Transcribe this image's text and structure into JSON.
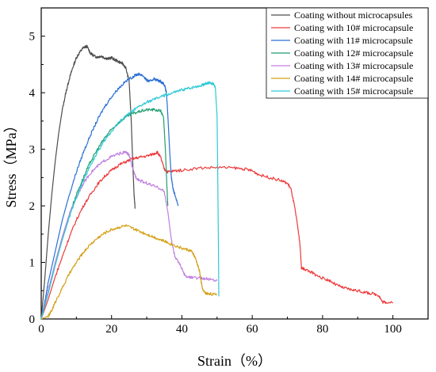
{
  "chart_data": {
    "type": "line",
    "title": "",
    "xlabel": "Strain（%）",
    "ylabel": "Stress（MPa）",
    "xlim": [
      0,
      110
    ],
    "ylim": [
      0,
      5.5
    ],
    "xticks": [
      0,
      20,
      40,
      60,
      80,
      100
    ],
    "yticks": [
      0,
      1,
      2,
      3,
      4,
      5
    ],
    "grid": false,
    "legend": "top-right",
    "series": [
      {
        "name": "Coating without microcapsules",
        "color": "#4d4d4d",
        "points": [
          [
            0,
            0
          ],
          [
            1,
            0.7
          ],
          [
            2,
            1.5
          ],
          [
            3,
            2.2
          ],
          [
            4,
            2.8
          ],
          [
            5,
            3.3
          ],
          [
            6,
            3.7
          ],
          [
            7,
            4.0
          ],
          [
            8,
            4.25
          ],
          [
            9,
            4.45
          ],
          [
            10,
            4.62
          ],
          [
            11,
            4.72
          ],
          [
            12,
            4.8
          ],
          [
            13,
            4.82
          ],
          [
            14,
            4.7
          ],
          [
            15,
            4.65
          ],
          [
            16,
            4.63
          ],
          [
            17,
            4.65
          ],
          [
            18,
            4.62
          ],
          [
            19,
            4.6
          ],
          [
            20,
            4.62
          ],
          [
            21,
            4.58
          ],
          [
            22,
            4.55
          ],
          [
            23,
            4.52
          ],
          [
            24,
            4.45
          ],
          [
            25,
            4.2
          ],
          [
            25.6,
            3.5
          ],
          [
            26,
            2.8
          ],
          [
            26.4,
            2.2
          ],
          [
            26.7,
            1.95
          ]
        ]
      },
      {
        "name": "Coating with 10# microcapsule",
        "color": "#ee3a3a",
        "points": [
          [
            0,
            0
          ],
          [
            2,
            0.35
          ],
          [
            4,
            0.75
          ],
          [
            6,
            1.1
          ],
          [
            8,
            1.45
          ],
          [
            10,
            1.75
          ],
          [
            12,
            2.0
          ],
          [
            14,
            2.2
          ],
          [
            16,
            2.38
          ],
          [
            18,
            2.52
          ],
          [
            20,
            2.63
          ],
          [
            22,
            2.72
          ],
          [
            24,
            2.78
          ],
          [
            26,
            2.83
          ],
          [
            28,
            2.86
          ],
          [
            30,
            2.88
          ],
          [
            32,
            2.92
          ],
          [
            33,
            2.95
          ],
          [
            34,
            2.85
          ],
          [
            35,
            2.65
          ],
          [
            36,
            2.6
          ],
          [
            38,
            2.62
          ],
          [
            40,
            2.63
          ],
          [
            45,
            2.67
          ],
          [
            50,
            2.68
          ],
          [
            55,
            2.67
          ],
          [
            58,
            2.65
          ],
          [
            60,
            2.62
          ],
          [
            62,
            2.55
          ],
          [
            65,
            2.5
          ],
          [
            68,
            2.45
          ],
          [
            70,
            2.4
          ],
          [
            71,
            2.3
          ],
          [
            72,
            2.0
          ],
          [
            73,
            1.6
          ],
          [
            73.6,
            1.3
          ],
          [
            74,
            0.9
          ],
          [
            75,
            0.88
          ],
          [
            77,
            0.82
          ],
          [
            78,
            0.78
          ],
          [
            80,
            0.72
          ],
          [
            82,
            0.68
          ],
          [
            84,
            0.6
          ],
          [
            86,
            0.55
          ],
          [
            88,
            0.52
          ],
          [
            90,
            0.5
          ],
          [
            92,
            0.47
          ],
          [
            94,
            0.45
          ],
          [
            96,
            0.42
          ],
          [
            97,
            0.3
          ],
          [
            98,
            0.3
          ],
          [
            100,
            0.28
          ]
        ]
      },
      {
        "name": "Coating with 11# microcapsule",
        "color": "#2a6fd6",
        "points": [
          [
            0,
            0
          ],
          [
            1,
            0.3
          ],
          [
            2,
            0.65
          ],
          [
            4,
            1.2
          ],
          [
            6,
            1.75
          ],
          [
            8,
            2.2
          ],
          [
            10,
            2.6
          ],
          [
            12,
            2.95
          ],
          [
            14,
            3.25
          ],
          [
            16,
            3.52
          ],
          [
            18,
            3.75
          ],
          [
            20,
            3.93
          ],
          [
            22,
            4.08
          ],
          [
            24,
            4.2
          ],
          [
            26,
            4.28
          ],
          [
            27,
            4.32
          ],
          [
            28,
            4.33
          ],
          [
            29,
            4.3
          ],
          [
            30,
            4.22
          ],
          [
            31,
            4.2
          ],
          [
            32,
            4.25
          ],
          [
            33,
            4.22
          ],
          [
            34,
            4.2
          ],
          [
            35,
            4.15
          ],
          [
            35.6,
            4.0
          ],
          [
            36,
            3.6
          ],
          [
            36.5,
            3.0
          ],
          [
            37,
            2.5
          ],
          [
            37.5,
            2.3
          ],
          [
            38,
            2.2
          ],
          [
            39,
            2.0
          ]
        ]
      },
      {
        "name": "Coating with 12# microcapsule",
        "color": "#1f9e6e",
        "points": [
          [
            0,
            0
          ],
          [
            2,
            0.5
          ],
          [
            4,
            1.0
          ],
          [
            6,
            1.45
          ],
          [
            8,
            1.85
          ],
          [
            10,
            2.2
          ],
          [
            12,
            2.5
          ],
          [
            14,
            2.78
          ],
          [
            16,
            3.0
          ],
          [
            18,
            3.2
          ],
          [
            20,
            3.35
          ],
          [
            22,
            3.47
          ],
          [
            24,
            3.57
          ],
          [
            26,
            3.63
          ],
          [
            28,
            3.67
          ],
          [
            30,
            3.7
          ],
          [
            32,
            3.7
          ],
          [
            34,
            3.68
          ],
          [
            34.8,
            3.55
          ],
          [
            35.3,
            3.0
          ],
          [
            35.7,
            2.4
          ],
          [
            36,
            2.0
          ]
        ]
      },
      {
        "name": "Coating with 13# microcapsule",
        "color": "#c07fe0",
        "points": [
          [
            0,
            0
          ],
          [
            2,
            0.5
          ],
          [
            4,
            1.0
          ],
          [
            6,
            1.45
          ],
          [
            8,
            1.85
          ],
          [
            10,
            2.15
          ],
          [
            12,
            2.4
          ],
          [
            14,
            2.58
          ],
          [
            16,
            2.7
          ],
          [
            18,
            2.8
          ],
          [
            20,
            2.87
          ],
          [
            22,
            2.92
          ],
          [
            24,
            2.95
          ],
          [
            25,
            2.9
          ],
          [
            26,
            2.65
          ],
          [
            27,
            2.5
          ],
          [
            28,
            2.45
          ],
          [
            30,
            2.4
          ],
          [
            32,
            2.35
          ],
          [
            34,
            2.3
          ],
          [
            35,
            2.25
          ],
          [
            36,
            1.9
          ],
          [
            37,
            1.4
          ],
          [
            38,
            1.1
          ],
          [
            40,
            0.9
          ],
          [
            41,
            0.75
          ],
          [
            43,
            0.73
          ],
          [
            46,
            0.72
          ],
          [
            48,
            0.7
          ],
          [
            50,
            0.68
          ]
        ]
      },
      {
        "name": "Coating with 14# microcapsule",
        "color": "#d4a017",
        "points": [
          [
            0,
            0
          ],
          [
            2,
            0.05
          ],
          [
            3,
            0.15
          ],
          [
            4,
            0.3
          ],
          [
            6,
            0.55
          ],
          [
            8,
            0.8
          ],
          [
            10,
            1.0
          ],
          [
            12,
            1.18
          ],
          [
            14,
            1.32
          ],
          [
            16,
            1.43
          ],
          [
            18,
            1.52
          ],
          [
            20,
            1.58
          ],
          [
            22,
            1.62
          ],
          [
            24,
            1.65
          ],
          [
            26,
            1.6
          ],
          [
            28,
            1.55
          ],
          [
            30,
            1.5
          ],
          [
            32,
            1.45
          ],
          [
            34,
            1.4
          ],
          [
            36,
            1.35
          ],
          [
            38,
            1.3
          ],
          [
            40,
            1.25
          ],
          [
            42,
            1.22
          ],
          [
            43,
            1.18
          ],
          [
            44,
            1.05
          ],
          [
            45,
            0.85
          ],
          [
            45.5,
            0.65
          ],
          [
            46,
            0.5
          ],
          [
            47,
            0.45
          ],
          [
            48,
            0.45
          ],
          [
            50,
            0.42
          ]
        ]
      },
      {
        "name": "Coating with 15# microcapsule",
        "color": "#2ec9d6",
        "points": [
          [
            0,
            0
          ],
          [
            2,
            0.45
          ],
          [
            4,
            0.95
          ],
          [
            6,
            1.4
          ],
          [
            8,
            1.8
          ],
          [
            10,
            2.15
          ],
          [
            12,
            2.45
          ],
          [
            14,
            2.72
          ],
          [
            16,
            2.95
          ],
          [
            18,
            3.15
          ],
          [
            20,
            3.32
          ],
          [
            22,
            3.47
          ],
          [
            24,
            3.58
          ],
          [
            26,
            3.68
          ],
          [
            28,
            3.76
          ],
          [
            30,
            3.83
          ],
          [
            32,
            3.88
          ],
          [
            34,
            3.93
          ],
          [
            36,
            3.97
          ],
          [
            38,
            4.01
          ],
          [
            40,
            4.05
          ],
          [
            42,
            4.08
          ],
          [
            44,
            4.11
          ],
          [
            46,
            4.14
          ],
          [
            47,
            4.17
          ],
          [
            48,
            4.18
          ],
          [
            49,
            4.15
          ],
          [
            49.5,
            4.1
          ],
          [
            50,
            3.6
          ],
          [
            50.2,
            2.5
          ],
          [
            50.4,
            1.2
          ],
          [
            50.5,
            0.4
          ]
        ]
      }
    ]
  }
}
